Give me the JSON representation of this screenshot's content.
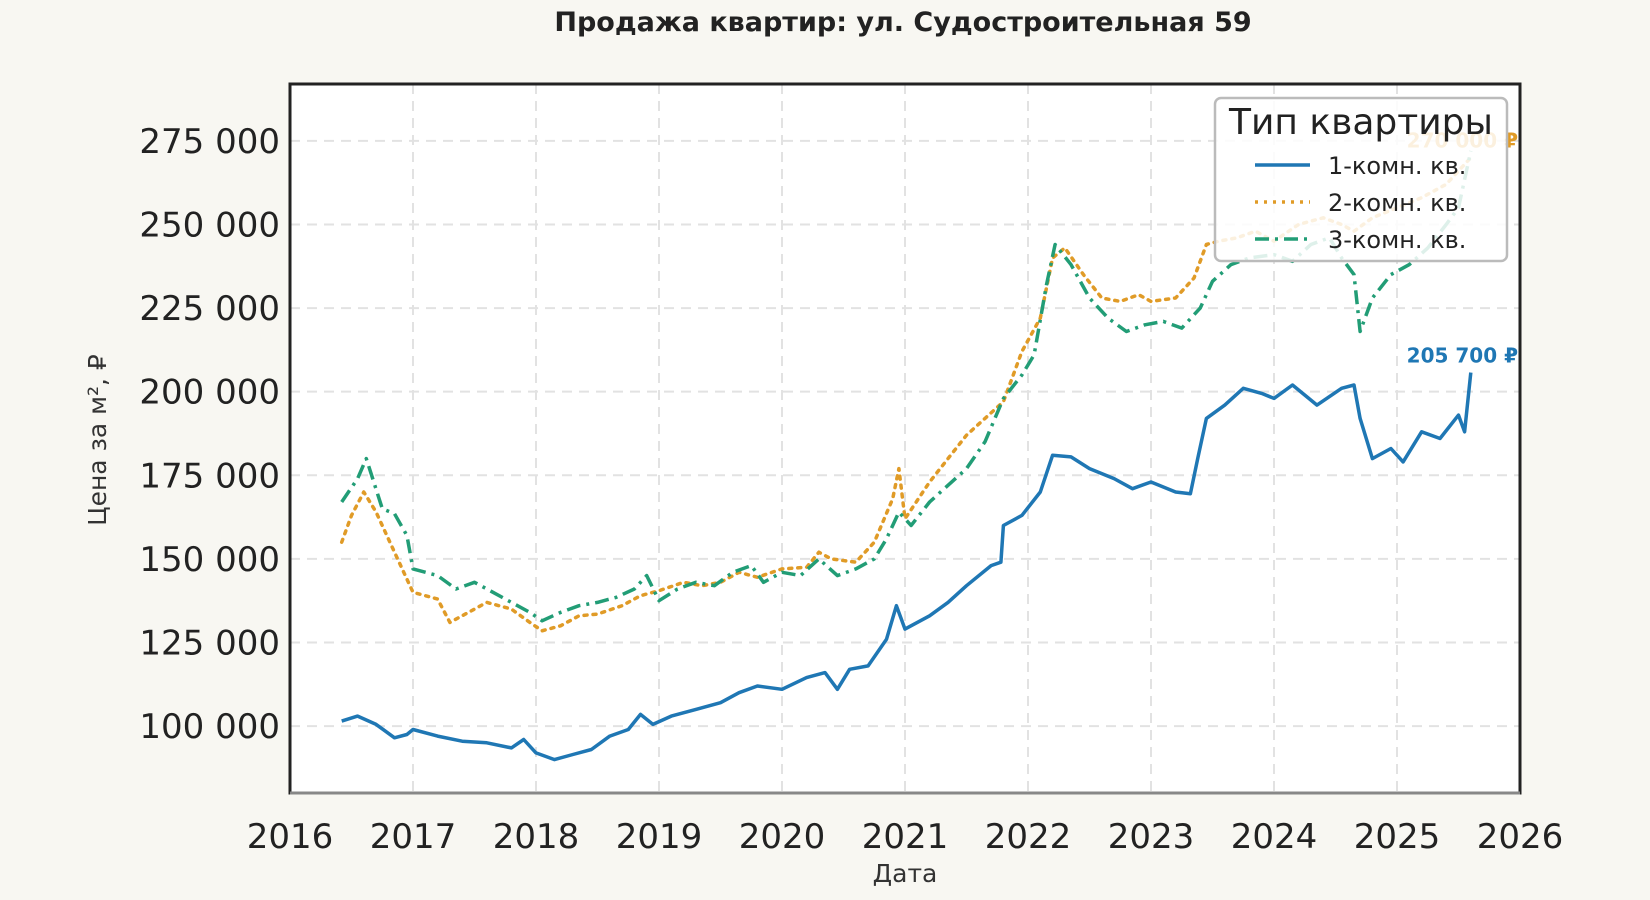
{
  "chart_data": {
    "type": "line",
    "title": "Продажа квартир: ул. Судостроительная 59",
    "xlabel": "Дата",
    "ylabel": "Цена за м², ₽",
    "xlim": [
      2016,
      2026
    ],
    "ylim": [
      80000,
      292000
    ],
    "x_ticks": [
      "2016",
      "2017",
      "2018",
      "2019",
      "2020",
      "2021",
      "2022",
      "2023",
      "2024",
      "2025",
      "2026"
    ],
    "y_ticks": [
      {
        "value": 100000,
        "label": "100 000"
      },
      {
        "value": 125000,
        "label": "125 000"
      },
      {
        "value": 150000,
        "label": "150 000"
      },
      {
        "value": 175000,
        "label": "175 000"
      },
      {
        "value": 200000,
        "label": "200 000"
      },
      {
        "value": 225000,
        "label": "225 000"
      },
      {
        "value": 250000,
        "label": "250 000"
      },
      {
        "value": 275000,
        "label": "275 000"
      }
    ],
    "grid": true,
    "legend": {
      "title": "Тип квартиры",
      "placement": "top-right"
    },
    "series": [
      {
        "name": "1-комн. кв.",
        "color": "#1f77b4",
        "style": "solid",
        "end_label": "205 700 ₽",
        "points": [
          [
            2016.42,
            101500
          ],
          [
            2016.55,
            103000
          ],
          [
            2016.7,
            100500
          ],
          [
            2016.85,
            96500
          ],
          [
            2016.95,
            97500
          ],
          [
            2017.0,
            99000
          ],
          [
            2017.2,
            97000
          ],
          [
            2017.4,
            95500
          ],
          [
            2017.6,
            95000
          ],
          [
            2017.8,
            93500
          ],
          [
            2017.9,
            96000
          ],
          [
            2018.0,
            92000
          ],
          [
            2018.15,
            90000
          ],
          [
            2018.3,
            91500
          ],
          [
            2018.45,
            93000
          ],
          [
            2018.6,
            97000
          ],
          [
            2018.75,
            99000
          ],
          [
            2018.85,
            103500
          ],
          [
            2018.95,
            100500
          ],
          [
            2019.1,
            103000
          ],
          [
            2019.3,
            105000
          ],
          [
            2019.5,
            107000
          ],
          [
            2019.65,
            110000
          ],
          [
            2019.8,
            112000
          ],
          [
            2020.0,
            111000
          ],
          [
            2020.2,
            114500
          ],
          [
            2020.35,
            116000
          ],
          [
            2020.45,
            111000
          ],
          [
            2020.55,
            117000
          ],
          [
            2020.7,
            118000
          ],
          [
            2020.85,
            126000
          ],
          [
            2020.93,
            136000
          ],
          [
            2021.0,
            129000
          ],
          [
            2021.2,
            133000
          ],
          [
            2021.35,
            137000
          ],
          [
            2021.5,
            142000
          ],
          [
            2021.7,
            148000
          ],
          [
            2021.78,
            149000
          ],
          [
            2021.8,
            160000
          ],
          [
            2021.95,
            163000
          ],
          [
            2022.1,
            170000
          ],
          [
            2022.2,
            181000
          ],
          [
            2022.35,
            180500
          ],
          [
            2022.5,
            177000
          ],
          [
            2022.7,
            174000
          ],
          [
            2022.85,
            171000
          ],
          [
            2023.0,
            173000
          ],
          [
            2023.2,
            170000
          ],
          [
            2023.32,
            169500
          ],
          [
            2023.38,
            180000
          ],
          [
            2023.45,
            192000
          ],
          [
            2023.6,
            196000
          ],
          [
            2023.75,
            201000
          ],
          [
            2023.9,
            199500
          ],
          [
            2024.0,
            198000
          ],
          [
            2024.15,
            202000
          ],
          [
            2024.35,
            196000
          ],
          [
            2024.55,
            201000
          ],
          [
            2024.65,
            202000
          ],
          [
            2024.7,
            192000
          ],
          [
            2024.8,
            180000
          ],
          [
            2024.95,
            183000
          ],
          [
            2025.05,
            179000
          ],
          [
            2025.2,
            188000
          ],
          [
            2025.35,
            186000
          ],
          [
            2025.5,
            193000
          ],
          [
            2025.55,
            188000
          ],
          [
            2025.6,
            205700
          ]
        ]
      },
      {
        "name": "2-комн. кв.",
        "color": "#e09b27",
        "style": "dotted",
        "end_label": "270 000 ₽",
        "points": [
          [
            2016.42,
            155000
          ],
          [
            2016.5,
            163000
          ],
          [
            2016.6,
            170000
          ],
          [
            2016.7,
            164000
          ],
          [
            2016.85,
            152000
          ],
          [
            2017.0,
            140000
          ],
          [
            2017.2,
            138000
          ],
          [
            2017.3,
            131000
          ],
          [
            2017.45,
            134000
          ],
          [
            2017.6,
            137000
          ],
          [
            2017.8,
            135000
          ],
          [
            2017.95,
            131000
          ],
          [
            2018.05,
            128500
          ],
          [
            2018.2,
            130000
          ],
          [
            2018.35,
            133000
          ],
          [
            2018.5,
            133500
          ],
          [
            2018.7,
            136000
          ],
          [
            2018.85,
            139000
          ],
          [
            2019.0,
            140500
          ],
          [
            2019.2,
            143000
          ],
          [
            2019.35,
            142000
          ],
          [
            2019.5,
            143000
          ],
          [
            2019.65,
            146000
          ],
          [
            2019.8,
            144500
          ],
          [
            2020.0,
            147000
          ],
          [
            2020.2,
            147500
          ],
          [
            2020.3,
            152000
          ],
          [
            2020.4,
            150000
          ],
          [
            2020.6,
            149000
          ],
          [
            2020.75,
            155000
          ],
          [
            2020.9,
            168000
          ],
          [
            2020.95,
            177000
          ],
          [
            2021.0,
            162000
          ],
          [
            2021.2,
            173000
          ],
          [
            2021.35,
            180000
          ],
          [
            2021.5,
            187000
          ],
          [
            2021.65,
            192000
          ],
          [
            2021.8,
            197000
          ],
          [
            2021.95,
            212000
          ],
          [
            2022.1,
            222000
          ],
          [
            2022.2,
            240000
          ],
          [
            2022.3,
            243000
          ],
          [
            2022.45,
            235000
          ],
          [
            2022.6,
            228000
          ],
          [
            2022.75,
            227000
          ],
          [
            2022.9,
            229000
          ],
          [
            2023.0,
            227000
          ],
          [
            2023.2,
            228000
          ],
          [
            2023.35,
            234000
          ],
          [
            2023.45,
            244000
          ],
          [
            2023.55,
            245000
          ],
          [
            2023.7,
            246000
          ],
          [
            2023.85,
            248000
          ],
          [
            2024.0,
            245000
          ],
          [
            2024.2,
            250000
          ],
          [
            2024.4,
            252000
          ],
          [
            2024.55,
            250000
          ],
          [
            2024.65,
            248000
          ],
          [
            2024.8,
            252000
          ],
          [
            2025.0,
            255000
          ],
          [
            2025.2,
            258000
          ],
          [
            2025.4,
            262000
          ],
          [
            2025.6,
            270000
          ]
        ]
      },
      {
        "name": "3-комн. кв.",
        "color": "#229d76",
        "style": "dashdot",
        "end_label": "",
        "points": [
          [
            2016.42,
            167000
          ],
          [
            2016.55,
            174000
          ],
          [
            2016.62,
            180000
          ],
          [
            2016.75,
            165000
          ],
          [
            2016.85,
            163500
          ],
          [
            2016.95,
            157000
          ],
          [
            2017.0,
            147000
          ],
          [
            2017.2,
            145000
          ],
          [
            2017.35,
            141000
          ],
          [
            2017.5,
            143000
          ],
          [
            2017.65,
            140000
          ],
          [
            2017.8,
            137000
          ],
          [
            2017.95,
            134000
          ],
          [
            2018.05,
            131500
          ],
          [
            2018.2,
            134000
          ],
          [
            2018.35,
            136000
          ],
          [
            2018.5,
            137000
          ],
          [
            2018.65,
            138500
          ],
          [
            2018.8,
            141000
          ],
          [
            2018.9,
            145000
          ],
          [
            2019.0,
            137500
          ],
          [
            2019.15,
            141000
          ],
          [
            2019.3,
            143000
          ],
          [
            2019.45,
            142000
          ],
          [
            2019.6,
            146000
          ],
          [
            2019.75,
            148000
          ],
          [
            2019.85,
            143000
          ],
          [
            2020.0,
            146000
          ],
          [
            2020.15,
            145000
          ],
          [
            2020.3,
            150000
          ],
          [
            2020.45,
            145000
          ],
          [
            2020.6,
            147000
          ],
          [
            2020.75,
            150000
          ],
          [
            2020.85,
            156000
          ],
          [
            2020.95,
            164000
          ],
          [
            2021.05,
            160000
          ],
          [
            2021.2,
            167000
          ],
          [
            2021.35,
            172000
          ],
          [
            2021.5,
            177000
          ],
          [
            2021.65,
            185000
          ],
          [
            2021.8,
            198000
          ],
          [
            2021.95,
            205000
          ],
          [
            2022.05,
            211000
          ],
          [
            2022.15,
            232000
          ],
          [
            2022.22,
            244000
          ],
          [
            2022.35,
            238000
          ],
          [
            2022.5,
            228000
          ],
          [
            2022.65,
            222000
          ],
          [
            2022.8,
            218000
          ],
          [
            2022.95,
            220000
          ],
          [
            2023.1,
            221000
          ],
          [
            2023.25,
            219000
          ],
          [
            2023.4,
            225000
          ],
          [
            2023.5,
            233000
          ],
          [
            2023.65,
            238000
          ],
          [
            2023.8,
            240000
          ],
          [
            2024.0,
            241000
          ],
          [
            2024.15,
            239000
          ],
          [
            2024.3,
            244000
          ],
          [
            2024.45,
            246000
          ],
          [
            2024.55,
            240000
          ],
          [
            2024.65,
            235000
          ],
          [
            2024.7,
            218000
          ],
          [
            2024.8,
            228000
          ],
          [
            2024.95,
            235000
          ],
          [
            2025.1,
            238000
          ],
          [
            2025.25,
            243000
          ],
          [
            2025.4,
            250000
          ],
          [
            2025.5,
            255000
          ],
          [
            2025.6,
            272000
          ]
        ]
      }
    ]
  }
}
